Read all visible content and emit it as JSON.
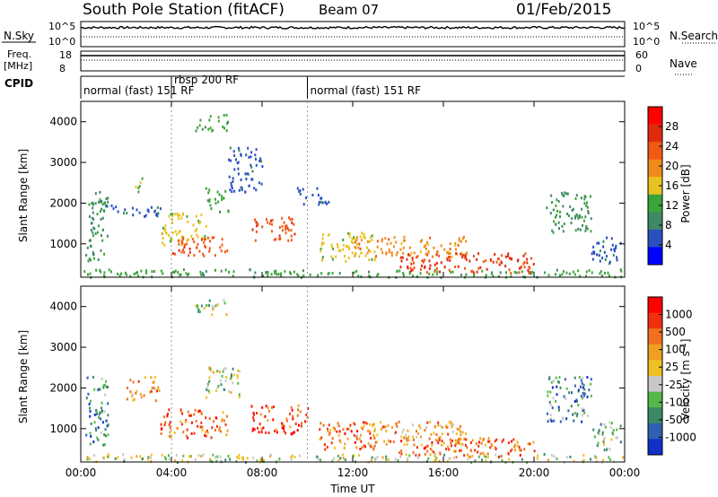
{
  "header": {
    "title": "South Pole Station (fitACF)",
    "beam": "Beam 07",
    "date": "01/Feb/2015"
  },
  "top_panels": {
    "nsky_label": "N.Sky",
    "nsearch_label": "N.Search",
    "noise_ticks_left": [
      "10^5",
      "10^0"
    ],
    "noise_ticks_right": [
      "10^5",
      "10^0"
    ],
    "freq_label_line1": "Freq.",
    "freq_label_line2": "[MHz]",
    "freq_ticks": [
      "18",
      "8"
    ],
    "nave_label": "Nave",
    "nave_ticks": [
      "60",
      "0"
    ],
    "cpid_label": "CPID",
    "cpid_segments": [
      {
        "label": "normal (fast) 151 RF",
        "start_h": 0,
        "end_h": 4.0
      },
      {
        "label": "rbsp 200 RF",
        "start_h": 4.0,
        "end_h": 10.0
      },
      {
        "label": "normal (fast) 151 RF",
        "start_h": 10.0,
        "end_h": 24.0
      }
    ]
  },
  "colors": {
    "power_scale": [
      "#0000ff",
      "#2a4fc0",
      "#3f8a66",
      "#3aa43a",
      "#e8c21e",
      "#f08a1a",
      "#f05a14",
      "#e02a10",
      "#ff0000"
    ],
    "velocity_scale": [
      "#1030c8",
      "#3060b0",
      "#3a8a66",
      "#56b84a",
      "#c8c8c8",
      "#f0c020",
      "#f0a020",
      "#f07020",
      "#f03010",
      "#ff0000"
    ]
  },
  "chart_data": [
    {
      "type": "heatmap",
      "title": "",
      "xlabel": "",
      "ylabel": "Slant Range [km]",
      "xlim": [
        0,
        24
      ],
      "ylim": [
        180,
        4500
      ],
      "x_tick_values": [
        0,
        4,
        8,
        12,
        16,
        20,
        24
      ],
      "y_tick_values": [
        1000,
        2000,
        3000,
        4000
      ],
      "y_tick_labels": [
        "1000",
        "2000",
        "3000",
        "4000"
      ],
      "colorbar": {
        "label": "Power [dB]",
        "ticks": [
          "28",
          "24",
          "20",
          "16",
          "12",
          "8",
          "4"
        ],
        "range": [
          0,
          32
        ]
      },
      "regions": [
        {
          "t0": 0.0,
          "t1": 24.0,
          "r0": 200,
          "r1": 400,
          "level": 12
        },
        {
          "t0": 0.2,
          "t1": 1.2,
          "r0": 600,
          "r1": 2300,
          "level": 10
        },
        {
          "t0": 1.0,
          "t1": 3.5,
          "r0": 1700,
          "r1": 2000,
          "level": 6
        },
        {
          "t0": 2.3,
          "t1": 2.7,
          "r0": 2300,
          "r1": 2700,
          "level": 14
        },
        {
          "t0": 3.5,
          "t1": 5.5,
          "r0": 1000,
          "r1": 1800,
          "level": 16
        },
        {
          "t0": 4.0,
          "t1": 6.5,
          "r0": 700,
          "r1": 1200,
          "level": 24
        },
        {
          "t0": 5.0,
          "t1": 6.5,
          "r0": 3800,
          "r1": 4200,
          "level": 12
        },
        {
          "t0": 5.5,
          "t1": 6.5,
          "r0": 1800,
          "r1": 2400,
          "level": 12
        },
        {
          "t0": 6.5,
          "t1": 8.0,
          "r0": 2300,
          "r1": 3400,
          "level": 6
        },
        {
          "t0": 7.5,
          "t1": 9.5,
          "r0": 1100,
          "r1": 1700,
          "level": 24
        },
        {
          "t0": 9.5,
          "t1": 11.0,
          "r0": 2000,
          "r1": 2400,
          "level": 6
        },
        {
          "t0": 10.5,
          "t1": 13.0,
          "r0": 600,
          "r1": 1300,
          "level": 16
        },
        {
          "t0": 12.0,
          "t1": 17.0,
          "r0": 700,
          "r1": 1200,
          "level": 20
        },
        {
          "t0": 14.0,
          "t1": 20.0,
          "r0": 300,
          "r1": 800,
          "level": 26
        },
        {
          "t0": 20.5,
          "t1": 22.5,
          "r0": 1300,
          "r1": 2300,
          "level": 10
        },
        {
          "t0": 22.5,
          "t1": 23.8,
          "r0": 500,
          "r1": 1200,
          "level": 6
        }
      ]
    },
    {
      "type": "heatmap",
      "title": "",
      "xlabel": "Time UT",
      "ylabel": "Slant Range [km]",
      "xlim": [
        0,
        24
      ],
      "ylim": [
        180,
        4500
      ],
      "x_tick_values": [
        0,
        4,
        8,
        12,
        16,
        20,
        24
      ],
      "x_tick_labels": [
        "00:00",
        "04:00",
        "08:00",
        "12:00",
        "16:00",
        "20:00",
        "00:00"
      ],
      "y_tick_values": [
        1000,
        2000,
        3000,
        4000
      ],
      "y_tick_labels": [
        "1000",
        "2000",
        "3000",
        "4000"
      ],
      "colorbar": {
        "label": "Velocity [m s-1]",
        "label_text": "Velocity",
        "label_unit": "[m s",
        "label_sup": "-1",
        "label_close": "]",
        "ticks": [
          "1000",
          "500",
          "100",
          "25",
          "-25",
          "-100",
          "-500",
          "-1000"
        ]
      },
      "regions": [
        {
          "t0": 0.0,
          "t1": 24.0,
          "r0": 200,
          "r1": 400,
          "level": 4
        },
        {
          "t0": 0.2,
          "t1": 1.2,
          "r0": 600,
          "r1": 2300,
          "level": 2
        },
        {
          "t0": 2.0,
          "t1": 3.5,
          "r0": 1700,
          "r1": 2300,
          "level": 6
        },
        {
          "t0": 3.5,
          "t1": 6.5,
          "r0": 800,
          "r1": 1500,
          "level": 7
        },
        {
          "t0": 5.0,
          "t1": 6.5,
          "r0": 3800,
          "r1": 4200,
          "level": 4
        },
        {
          "t0": 5.5,
          "t1": 7.0,
          "r0": 1800,
          "r1": 2600,
          "level": 4
        },
        {
          "t0": 7.5,
          "t1": 10.0,
          "r0": 900,
          "r1": 1600,
          "level": 8
        },
        {
          "t0": 10.5,
          "t1": 13.0,
          "r0": 500,
          "r1": 1200,
          "level": 7
        },
        {
          "t0": 12.0,
          "t1": 17.0,
          "r0": 600,
          "r1": 1200,
          "level": 6
        },
        {
          "t0": 14.0,
          "t1": 20.0,
          "r0": 300,
          "r1": 800,
          "level": 7
        },
        {
          "t0": 20.5,
          "t1": 22.5,
          "r0": 1200,
          "r1": 2300,
          "level": 2
        },
        {
          "t0": 22.5,
          "t1": 23.8,
          "r0": 500,
          "r1": 1200,
          "level": 3
        }
      ]
    }
  ]
}
